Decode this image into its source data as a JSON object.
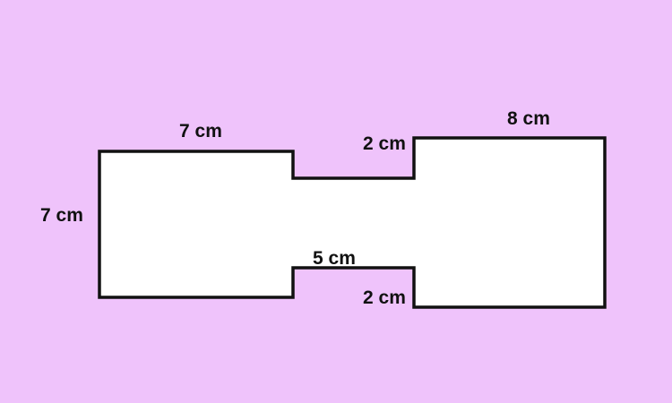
{
  "diagram": {
    "colors": {
      "background": "#efc3fb",
      "fill": "#ffffff",
      "stroke": "#111111",
      "text": "#111111"
    },
    "labels": {
      "left_top": "7 cm",
      "left_side": "7 cm",
      "neck_bottom": "5 cm",
      "right_top": "8 cm",
      "step_upper": "2 cm",
      "step_lower": "2 cm"
    }
  }
}
